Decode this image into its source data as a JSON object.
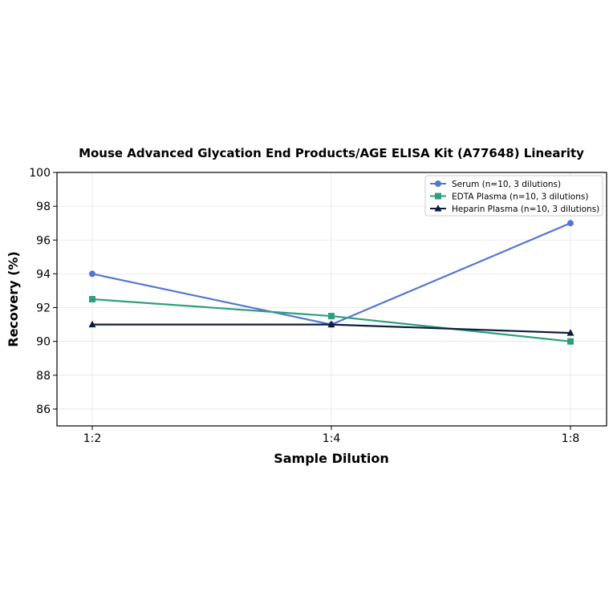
{
  "chart_data": {
    "type": "line",
    "title": "Mouse Advanced Glycation End Products/AGE ELISA Kit (A77648) Linearity",
    "xlabel": "Sample Dilution",
    "ylabel": "Recovery (%)",
    "categories": [
      "1:2",
      "1:4",
      "1:8"
    ],
    "ylim": [
      85,
      100
    ],
    "yticks": [
      86,
      88,
      90,
      92,
      94,
      96,
      98,
      100
    ],
    "grid": true,
    "legend_position": "top-right",
    "series": [
      {
        "name": "Serum (n=10, 3 dilutions)",
        "values": [
          94,
          91,
          97
        ],
        "color": "#5677d0",
        "marker": "circle"
      },
      {
        "name": "EDTA Plasma (n=10, 3 dilutions)",
        "values": [
          92.5,
          91.5,
          90
        ],
        "color": "#2e9e7e",
        "marker": "square"
      },
      {
        "name": "Heparin Plasma (n=10, 3 dilutions)",
        "values": [
          91,
          91,
          90.5
        ],
        "color": "#0f1d3f",
        "marker": "triangle"
      }
    ]
  }
}
